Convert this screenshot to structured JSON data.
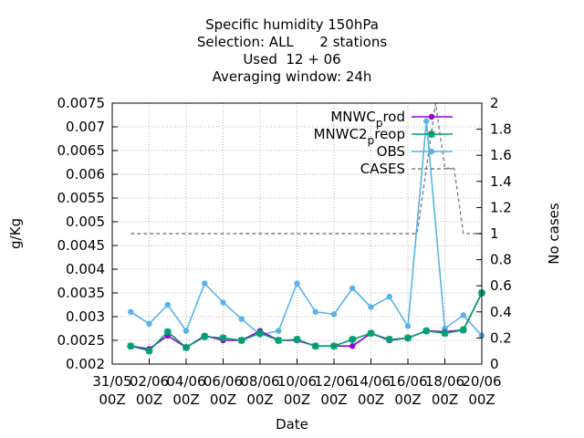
{
  "chart_data": {
    "type": "line",
    "title_lines": [
      "Specific humidity 150hPa",
      "Selection: ALL      2 stations",
      "Used  12 + 06",
      "Averaging window: 24h"
    ],
    "xlabel": "Date",
    "ylabel": "g/Kg",
    "y2label": "No cases",
    "x_tick_labels": [
      [
        "31/05",
        "00Z"
      ],
      [
        "02/06",
        "00Z"
      ],
      [
        "04/06",
        "00Z"
      ],
      [
        "06/06",
        "00Z"
      ],
      [
        "08/06",
        "00Z"
      ],
      [
        "10/06",
        "00Z"
      ],
      [
        "12/06",
        "00Z"
      ],
      [
        "14/06",
        "00Z"
      ],
      [
        "16/06",
        "00Z"
      ],
      [
        "18/06",
        "00Z"
      ],
      [
        "20/06",
        "00Z"
      ]
    ],
    "xlim_days": [
      0,
      20
    ],
    "ylim": [
      0.002,
      0.0075
    ],
    "y_ticks": [
      "0.002",
      "0.0025",
      "0.003",
      "0.0035",
      "0.004",
      "0.0045",
      "0.005",
      "0.0055",
      "0.006",
      "0.0065",
      "0.007",
      "0.0075"
    ],
    "y2lim": [
      0,
      2
    ],
    "y2_ticks": [
      "0",
      "0.2",
      "0.4",
      "0.6",
      "0.8",
      "1",
      "1.2",
      "1.4",
      "1.6",
      "1.8",
      "2"
    ],
    "grid": true,
    "legend_position": "top-right",
    "x_days": [
      1,
      2,
      3,
      4,
      5,
      6,
      7,
      8,
      9,
      10,
      11,
      12,
      13,
      14,
      15,
      16,
      17,
      18,
      19,
      20
    ],
    "series": [
      {
        "name": "MNWC_prod",
        "legend_parts": [
          "MNWC",
          "p",
          "rod"
        ],
        "color": "#9400d3",
        "marker": "circle",
        "axis": "y1",
        "values": [
          0.00238,
          0.00232,
          0.0026,
          0.00235,
          0.0026,
          0.0025,
          0.0025,
          0.0027,
          0.0025,
          0.0025,
          0.00238,
          0.00238,
          0.00238,
          0.00265,
          0.0025,
          0.00255,
          0.0027,
          0.00268,
          0.00272,
          0.0035
        ]
      },
      {
        "name": "MNWC2_preop",
        "legend_parts": [
          "MNWC2",
          "p",
          "reop"
        ],
        "color": "#009e73",
        "marker": "star",
        "axis": "y1",
        "values": [
          0.00238,
          0.00228,
          0.00268,
          0.00235,
          0.00258,
          0.00255,
          0.0025,
          0.00265,
          0.0025,
          0.00252,
          0.00238,
          0.00238,
          0.00252,
          0.00265,
          0.00252,
          0.00255,
          0.0027,
          0.00265,
          0.00272,
          0.0035
        ]
      },
      {
        "name": "OBS",
        "legend_parts": [
          "OBS"
        ],
        "color": "#56b4e9",
        "marker": "circle",
        "axis": "y1",
        "values": [
          0.0031,
          0.00285,
          0.00325,
          0.0027,
          0.0037,
          0.0033,
          0.00295,
          0.00262,
          0.0027,
          0.0037,
          0.0031,
          0.00305,
          0.0036,
          0.0032,
          0.00342,
          0.0028,
          0.00712,
          0.00275,
          0.00303,
          0.0026
        ]
      },
      {
        "name": "CASES",
        "legend_parts": [
          "CASES"
        ],
        "color": "#808080",
        "dash": true,
        "axis": "y2",
        "x_days": [
          1,
          16,
          16.5,
          17,
          17.5,
          18,
          18.5,
          19,
          19.5,
          20
        ],
        "values": [
          1,
          1,
          1,
          1.5,
          2,
          1.5,
          1.5,
          1,
          1,
          1
        ]
      }
    ]
  }
}
